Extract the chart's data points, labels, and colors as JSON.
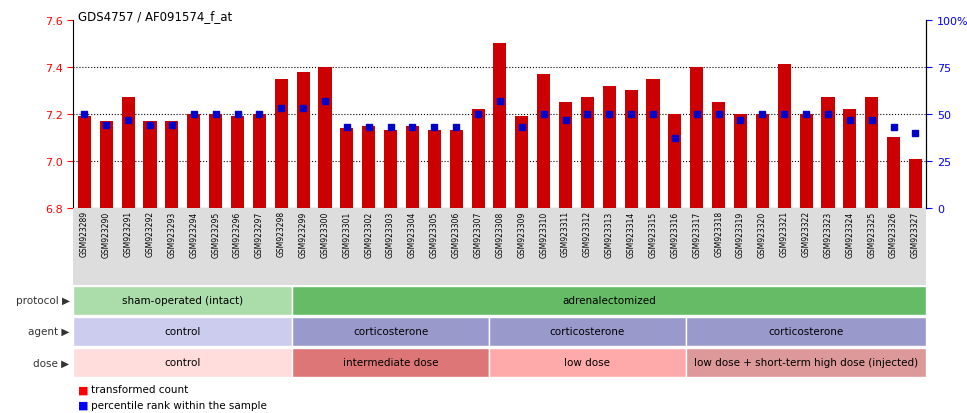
{
  "title": "GDS4757 / AF091574_f_at",
  "samples": [
    "GSM923289",
    "GSM923290",
    "GSM923291",
    "GSM923292",
    "GSM923293",
    "GSM923294",
    "GSM923295",
    "GSM923296",
    "GSM923297",
    "GSM923298",
    "GSM923299",
    "GSM923300",
    "GSM923301",
    "GSM923302",
    "GSM923303",
    "GSM923304",
    "GSM923305",
    "GSM923306",
    "GSM923307",
    "GSM923308",
    "GSM923309",
    "GSM923310",
    "GSM923311",
    "GSM923312",
    "GSM923313",
    "GSM923314",
    "GSM923315",
    "GSM923316",
    "GSM923317",
    "GSM923318",
    "GSM923319",
    "GSM923320",
    "GSM923321",
    "GSM923322",
    "GSM923323",
    "GSM923324",
    "GSM923325",
    "GSM923326",
    "GSM923327"
  ],
  "bar_values": [
    7.19,
    7.17,
    7.27,
    7.17,
    7.17,
    7.2,
    7.2,
    7.19,
    7.2,
    7.35,
    7.38,
    7.4,
    7.14,
    7.15,
    7.13,
    7.15,
    7.13,
    7.13,
    7.22,
    7.5,
    7.19,
    7.37,
    7.25,
    7.27,
    7.32,
    7.3,
    7.35,
    7.2,
    7.4,
    7.25,
    7.2,
    7.2,
    7.41,
    7.2,
    7.27,
    7.22,
    7.27,
    7.1,
    7.01
  ],
  "percentile_values": [
    50,
    44,
    47,
    44,
    44,
    50,
    50,
    50,
    50,
    53,
    53,
    57,
    43,
    43,
    43,
    43,
    43,
    43,
    50,
    57,
    43,
    50,
    47,
    50,
    50,
    50,
    50,
    37,
    50,
    50,
    47,
    50,
    50,
    50,
    50,
    47,
    47,
    43,
    40
  ],
  "bar_color": "#CC0000",
  "dot_color": "#0000CC",
  "ylim_left": [
    6.8,
    7.6
  ],
  "ylim_right": [
    0,
    100
  ],
  "yticks_left": [
    6.8,
    7.0,
    7.2,
    7.4,
    7.6
  ],
  "yticks_right": [
    0,
    25,
    50,
    75,
    100
  ],
  "ytick_labels_right": [
    "0",
    "25",
    "50",
    "75",
    "100%"
  ],
  "grid_values": [
    7.0,
    7.2,
    7.4
  ],
  "background_color": "#ffffff",
  "bar_width": 0.6,
  "xlabel_area_color": "#DDDDDD",
  "protocol_groups": [
    {
      "label": "sham-operated (intact)",
      "start": 0,
      "end": 9,
      "color": "#AADDAA"
    },
    {
      "label": "adrenalectomized",
      "start": 10,
      "end": 38,
      "color": "#66BB66"
    }
  ],
  "agent_groups": [
    {
      "label": "control",
      "start": 0,
      "end": 9,
      "color": "#CCCCEE"
    },
    {
      "label": "corticosterone",
      "start": 10,
      "end": 18,
      "color": "#9999CC"
    },
    {
      "label": "corticosterone",
      "start": 19,
      "end": 27,
      "color": "#9999CC"
    },
    {
      "label": "corticosterone",
      "start": 28,
      "end": 38,
      "color": "#9999CC"
    }
  ],
  "dose_groups": [
    {
      "label": "control",
      "start": 0,
      "end": 9,
      "color": "#FFDDDD"
    },
    {
      "label": "intermediate dose",
      "start": 10,
      "end": 18,
      "color": "#DD7777"
    },
    {
      "label": "low dose",
      "start": 19,
      "end": 27,
      "color": "#FFAAAA"
    },
    {
      "label": "low dose + short-term high dose (injected)",
      "start": 28,
      "end": 38,
      "color": "#DD9999"
    }
  ],
  "legend_items": [
    {
      "label": "transformed count",
      "color": "#CC0000"
    },
    {
      "label": "percentile rank within the sample",
      "color": "#0000CC"
    }
  ]
}
